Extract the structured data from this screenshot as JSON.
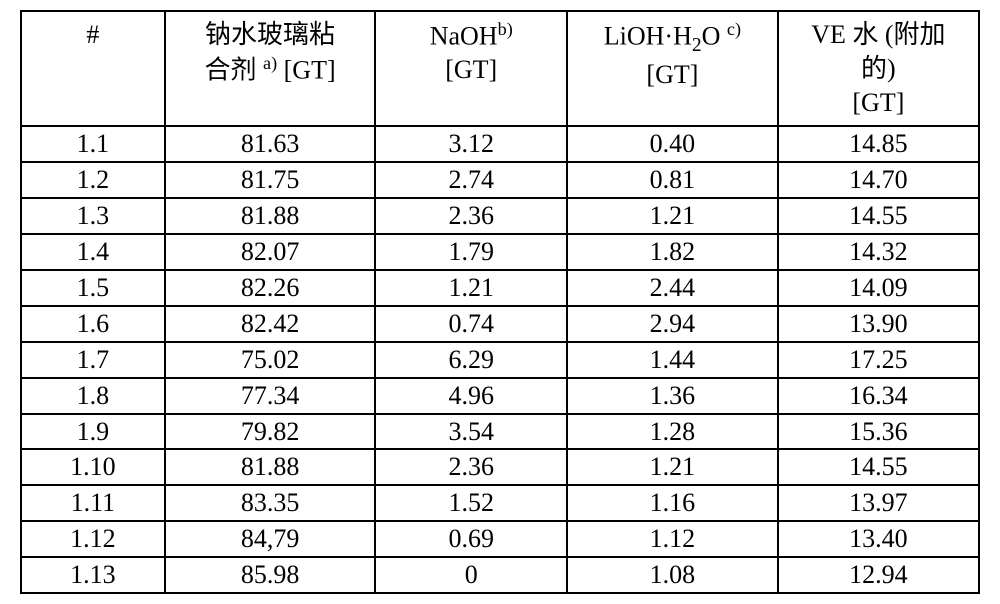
{
  "table": {
    "type": "table",
    "background_color": "#ffffff",
    "border_color": "#000000",
    "font_family": "Times New Roman",
    "header_fontsize": 26,
    "cell_fontsize": 26,
    "columns": [
      {
        "key": "num",
        "label_html": "#",
        "width_pct": 15,
        "align": "center"
      },
      {
        "key": "binder",
        "label_html": "钠水玻璃粘<br>合剂 <sup>a)</sup> [GT]",
        "width_pct": 22,
        "align": "center"
      },
      {
        "key": "naoh",
        "label_html": "NaOH<sup>b)</sup><br>[GT]",
        "width_pct": 20,
        "align": "center"
      },
      {
        "key": "lioh",
        "label_html": "LiOH·H<sub>2</sub>O <sup>c)</sup><br>[GT]",
        "width_pct": 22,
        "align": "center"
      },
      {
        "key": "ve",
        "label_html": "VE 水 (附加<br>的)<br>[GT]",
        "width_pct": 21,
        "align": "center"
      }
    ],
    "rows": [
      {
        "num": "1.1",
        "binder": "81.63",
        "naoh": "3.12",
        "lioh": "0.40",
        "ve": "14.85"
      },
      {
        "num": "1.2",
        "binder": "81.75",
        "naoh": "2.74",
        "lioh": "0.81",
        "ve": "14.70"
      },
      {
        "num": "1.3",
        "binder": "81.88",
        "naoh": "2.36",
        "lioh": "1.21",
        "ve": "14.55"
      },
      {
        "num": "1.4",
        "binder": "82.07",
        "naoh": "1.79",
        "lioh": "1.82",
        "ve": "14.32"
      },
      {
        "num": "1.5",
        "binder": "82.26",
        "naoh": "1.21",
        "lioh": "2.44",
        "ve": "14.09"
      },
      {
        "num": "1.6",
        "binder": "82.42",
        "naoh": "0.74",
        "lioh": "2.94",
        "ve": "13.90"
      },
      {
        "num": "1.7",
        "binder": "75.02",
        "naoh": "6.29",
        "lioh": "1.44",
        "ve": "17.25"
      },
      {
        "num": "1.8",
        "binder": "77.34",
        "naoh": "4.96",
        "lioh": "1.36",
        "ve": "16.34"
      },
      {
        "num": "1.9",
        "binder": "79.82",
        "naoh": "3.54",
        "lioh": "1.28",
        "ve": "15.36"
      },
      {
        "num": "1.10",
        "binder": "81.88",
        "naoh": "2.36",
        "lioh": "1.21",
        "ve": "14.55"
      },
      {
        "num": "1.11",
        "binder": "83.35",
        "naoh": "1.52",
        "lioh": "1.16",
        "ve": "13.97"
      },
      {
        "num": "1.12",
        "binder": "84,79",
        "naoh": "0.69",
        "lioh": "1.12",
        "ve": "13.40"
      },
      {
        "num": "1.13",
        "binder": "85.98",
        "naoh": "0",
        "lioh": "1.08",
        "ve": "12.94"
      }
    ]
  }
}
